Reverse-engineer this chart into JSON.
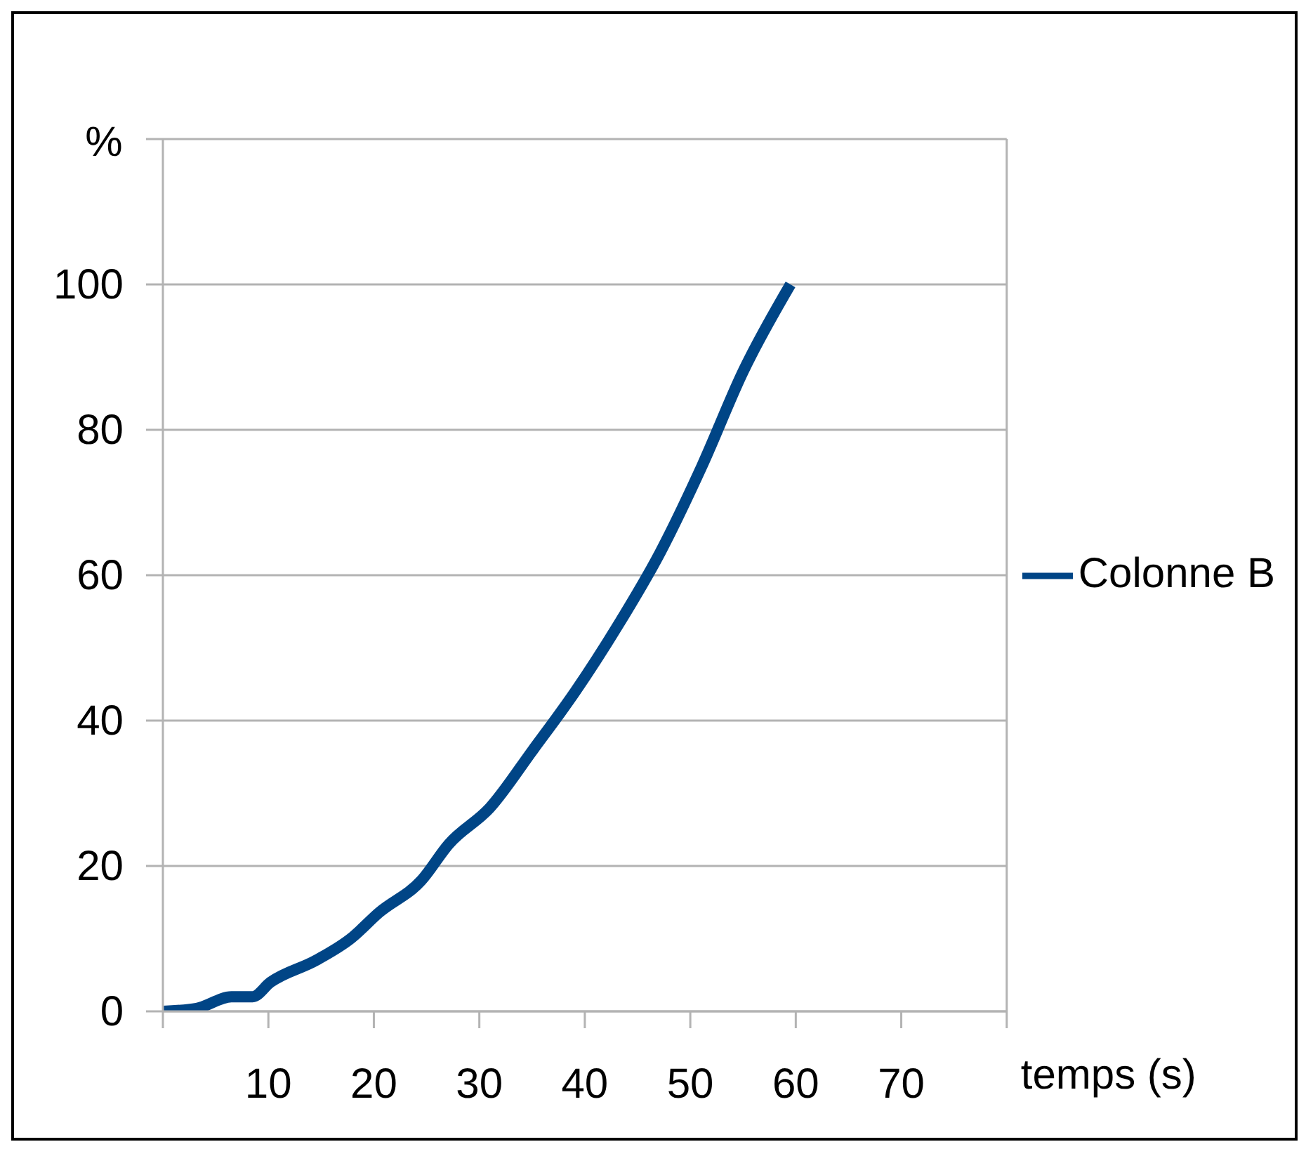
{
  "chart_data": {
    "type": "line",
    "xlabel": "temps (s)",
    "ylabel": "%",
    "series": [
      {
        "name": "Colonne B",
        "color": "#004586",
        "x": [
          0,
          3.2,
          6.5,
          8.5,
          10.2,
          14.5,
          17.8,
          20.5,
          24.5,
          27.1,
          31,
          35.1,
          39.1,
          43.1,
          47.1,
          51.1,
          55,
          59.5
        ],
        "values": [
          0,
          0.4,
          2,
          2,
          4,
          7,
          10,
          13.6,
          18,
          23,
          28,
          36,
          44,
          53,
          63,
          75,
          88,
          100
        ]
      }
    ],
    "xlim": [
      0,
      80
    ],
    "xticks": [
      {
        "value": 0,
        "label": null
      },
      10,
      20,
      30,
      40,
      50,
      60,
      70,
      {
        "value": 80,
        "label": null
      }
    ],
    "ylim": [
      0,
      120
    ],
    "yticks": [
      0,
      20,
      40,
      60,
      80,
      100,
      {
        "value": 120,
        "label": null
      }
    ],
    "grid": "y",
    "legend": "right",
    "marker": "none",
    "line_style": "solid"
  }
}
